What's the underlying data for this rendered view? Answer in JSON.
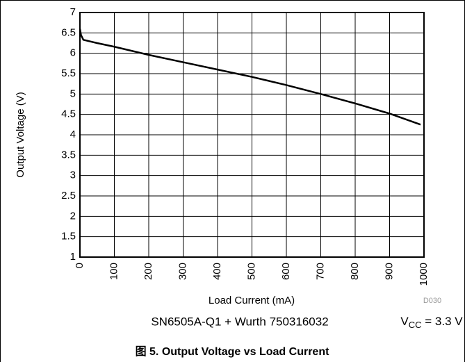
{
  "chart_data": {
    "type": "line",
    "caption": "图 5. Output Voltage vs Load Current",
    "xlabel": "Load Current (mA)",
    "ylabel": "Output Voltage (V)",
    "code": "D030",
    "note": "SN6505A-Q1 + Wurth 750316032",
    "condition": {
      "symbol": "V",
      "subscript": "CC",
      "rest": " = 3.3 V"
    },
    "x": [
      0,
      3,
      10,
      50,
      100,
      200,
      300,
      400,
      500,
      600,
      700,
      800,
      900,
      990
    ],
    "series": [
      {
        "name": "Output Voltage",
        "color": "#000000",
        "values": [
          6.6,
          6.45,
          6.33,
          6.25,
          6.16,
          5.96,
          5.78,
          5.6,
          5.42,
          5.22,
          5.0,
          4.77,
          4.52,
          4.25
        ]
      }
    ],
    "xlim": [
      0,
      1000
    ],
    "xticks": [
      0,
      100,
      200,
      300,
      400,
      500,
      600,
      700,
      800,
      900,
      1000
    ],
    "ylim": [
      1,
      7
    ],
    "yticks": [
      1,
      1.5,
      2,
      2.5,
      3,
      3.5,
      4,
      4.5,
      5,
      5.5,
      6,
      6.5,
      7
    ],
    "grid": true
  }
}
